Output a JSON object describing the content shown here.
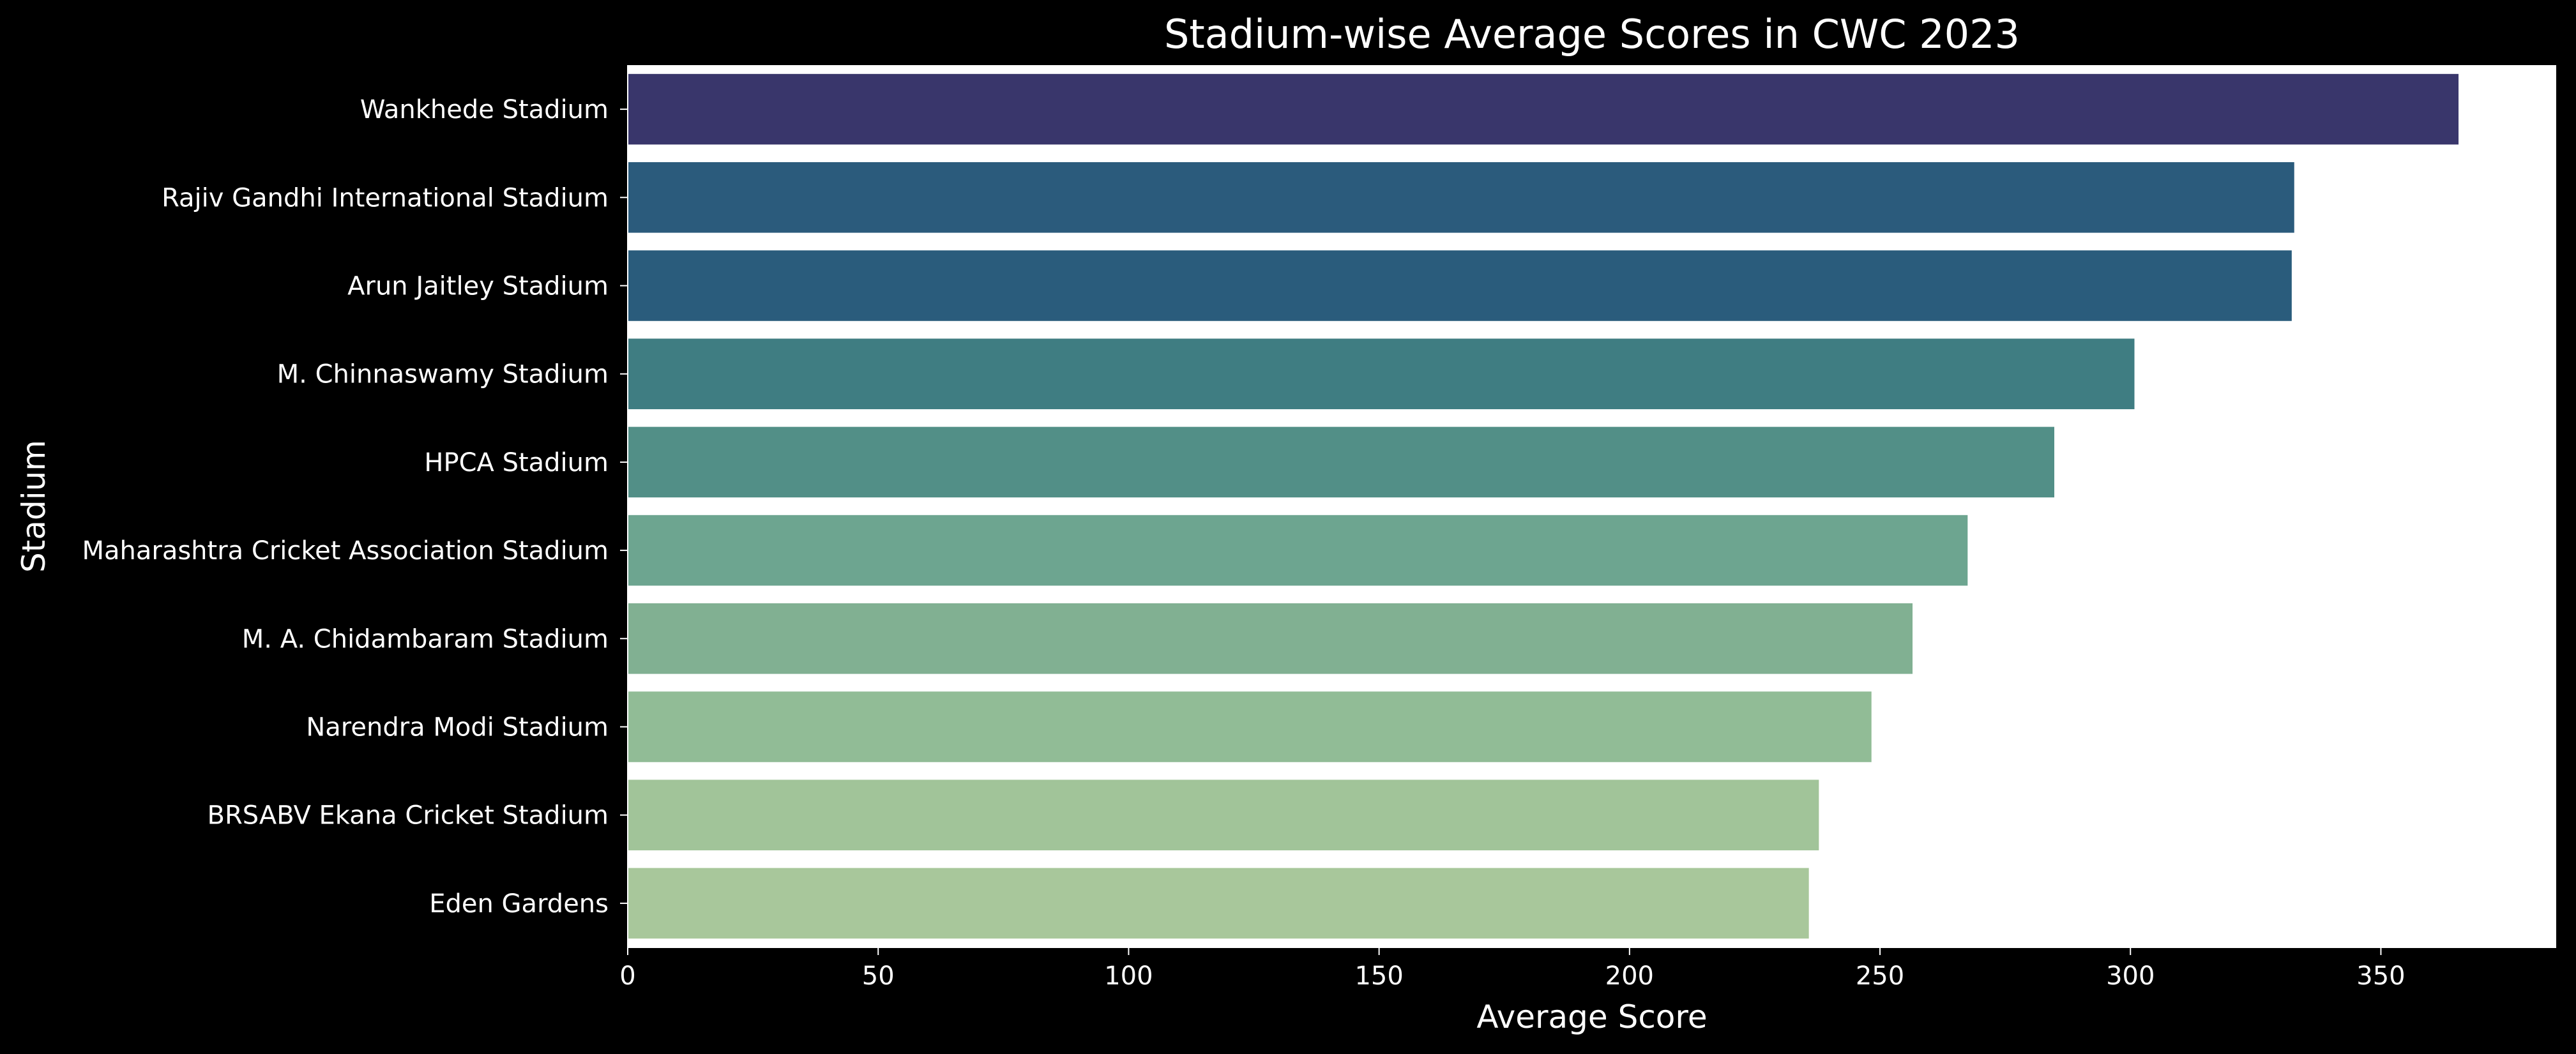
{
  "chart_data": {
    "type": "bar",
    "orientation": "horizontal",
    "title": "Stadium-wise Average Scores in CWC 2023",
    "xlabel": "Average Score",
    "ylabel": "Stadium",
    "xlim": [
      0,
      385
    ],
    "xticks": [
      0,
      50,
      100,
      150,
      200,
      250,
      300,
      350
    ],
    "xtick_labels": [
      "0",
      "50",
      "100",
      "150",
      "200",
      "250",
      "300",
      "350"
    ],
    "grid": false,
    "background": "#000000",
    "plot_background": "#ffffff",
    "categories": [
      "Wankhede Stadium",
      "Rajiv Gandhi International Stadium",
      "Arun Jaitley Stadium",
      "M. Chinnaswamy Stadium",
      "HPCA Stadium",
      "Maharashtra Cricket Association Stadium",
      "M. A. Chidambaram Stadium",
      "Narendra Modi Stadium",
      "BRSABV Ekana Cricket Stadium",
      "Eden Gardens"
    ],
    "values": [
      365.5,
      332.7,
      332.2,
      300.8,
      284.8,
      267.5,
      256.5,
      248.3,
      237.8,
      235.8
    ],
    "colors": [
      "#39366b",
      "#2b5b7c",
      "#2a5c7c",
      "#3f7d82",
      "#528f87",
      "#6da590",
      "#81b092",
      "#91bc96",
      "#a1c499",
      "#a8c79b"
    ]
  }
}
